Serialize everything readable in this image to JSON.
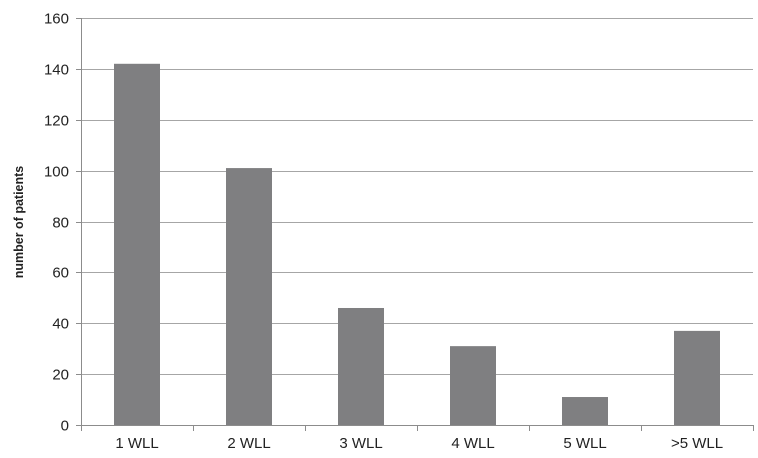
{
  "chart_data": {
    "type": "bar",
    "title": "",
    "xlabel": "",
    "ylabel": "number of patients",
    "categories": [
      "1 WLL",
      "2 WLL",
      "3 WLL",
      "4 WLL",
      "5 WLL",
      ">5 WLL"
    ],
    "values": [
      142,
      101,
      46,
      31,
      11,
      37
    ],
    "ylim": [
      0,
      160
    ],
    "yticks": [
      0,
      20,
      40,
      60,
      80,
      100,
      120,
      140,
      160
    ],
    "grid": true,
    "legend": "none",
    "colors": {
      "bar": "#7f7f81",
      "grid": "#a6a6a6",
      "axis": "#8c8c8c"
    }
  }
}
